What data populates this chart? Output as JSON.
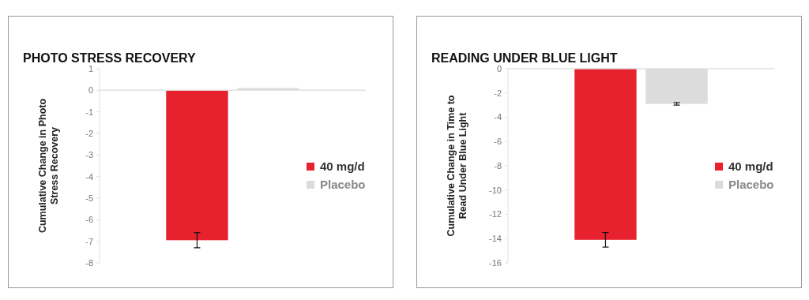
{
  "chart_data": [
    {
      "type": "bar",
      "title": "PHOTO STRESS RECOVERY",
      "ylabel": "Cumulative Change in Photo Stress Recovery",
      "categories": [
        null
      ],
      "series": [
        {
          "name": "40 mg/d",
          "color": "#e8212e",
          "values": [
            -6.95
          ],
          "errors": [
            [
              -7.3,
              -6.6
            ]
          ]
        },
        {
          "name": "Placebo",
          "color": "#dcdcdc",
          "values": [
            0.1
          ]
        }
      ],
      "ylim": [
        -8,
        1
      ],
      "yticks": [
        -8,
        -7,
        -6,
        -5,
        -4,
        -3,
        -2,
        -1,
        0,
        1
      ],
      "legend": "right"
    },
    {
      "type": "bar",
      "title": "READING UNDER BLUE LIGHT",
      "ylabel": "Cumulative Change in Time to Read Under Blue Light",
      "categories": [
        null
      ],
      "series": [
        {
          "name": "40 mg/d",
          "color": "#e8212e",
          "values": [
            -14.1
          ],
          "errors": [
            [
              -14.7,
              -13.5
            ]
          ]
        },
        {
          "name": "Placebo",
          "color": "#dcdcdc",
          "values": [
            -2.9
          ],
          "errors": [
            [
              -3.0,
              -2.8
            ]
          ]
        }
      ],
      "ylim": [
        -16,
        0
      ],
      "yticks": [
        -16,
        -14,
        -12,
        -10,
        -8,
        -6,
        -4,
        -2,
        0
      ],
      "legend": "right"
    }
  ]
}
